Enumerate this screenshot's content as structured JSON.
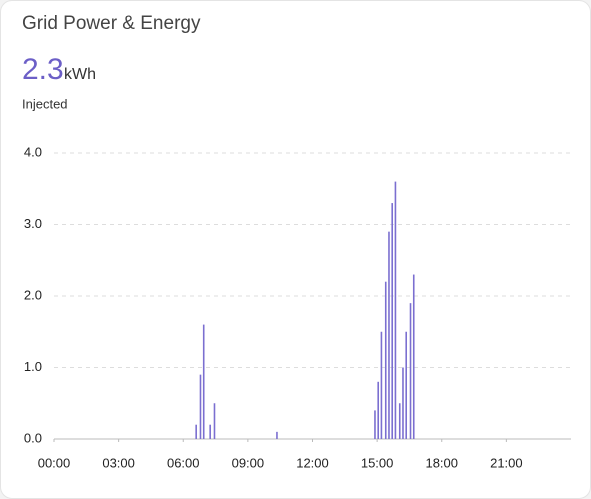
{
  "chart_data": {
    "type": "bar",
    "title": "Grid Power & Energy",
    "total": 2.3,
    "unit": "kWh",
    "subtitle": "Injected",
    "x": [
      6.6,
      6.8,
      6.95,
      7.25,
      7.45,
      10.35,
      14.9,
      15.05,
      15.2,
      15.4,
      15.55,
      15.7,
      15.85,
      16.05,
      16.2,
      16.35,
      16.55,
      16.7
    ],
    "values": [
      0.2,
      0.9,
      1.6,
      0.2,
      0.5,
      0.1,
      0.4,
      0.8,
      1.5,
      2.2,
      2.9,
      3.3,
      3.6,
      0.5,
      1.0,
      1.5,
      1.9,
      2.3
    ],
    "color": "#7b6fd0",
    "xlim": [
      0,
      24
    ],
    "xticks": [
      {
        "value": 0,
        "label": "00:00"
      },
      {
        "value": 3,
        "label": "03:00"
      },
      {
        "value": 6,
        "label": "06:00"
      },
      {
        "value": 9,
        "label": "09:00"
      },
      {
        "value": 12,
        "label": "12:00"
      },
      {
        "value": 15,
        "label": "15:00"
      },
      {
        "value": 18,
        "label": "18:00"
      },
      {
        "value": 21,
        "label": "21:00"
      }
    ],
    "ylim": [
      0,
      4
    ],
    "yticks": [
      {
        "value": 0,
        "label": "0.0"
      },
      {
        "value": 1,
        "label": "1.0"
      },
      {
        "value": 2,
        "label": "2.0"
      },
      {
        "value": 3,
        "label": "3.0"
      },
      {
        "value": 4,
        "label": "4.0"
      }
    ],
    "grid": true
  }
}
